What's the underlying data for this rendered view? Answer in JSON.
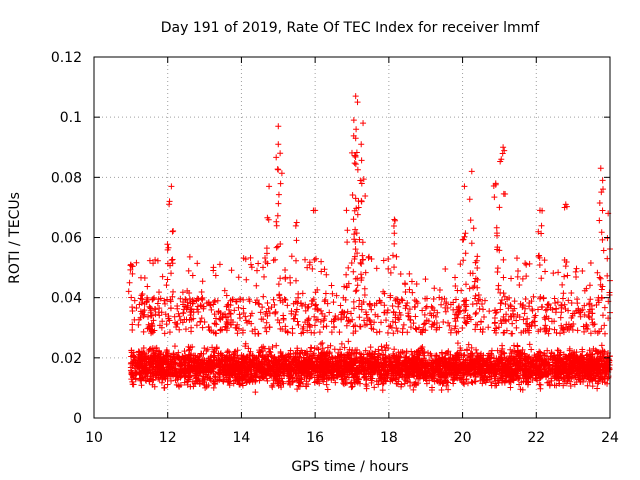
{
  "chart_data": {
    "type": "scatter",
    "marker": "plus",
    "color": "#ff0000",
    "title": "Day 191 of 2019, Rate Of TEC Index for receiver lmmf",
    "xlabel": "GPS time / hours",
    "ylabel": "ROTI / TECUs",
    "xlim": [
      10,
      24
    ],
    "ylim": [
      0,
      0.12
    ],
    "x_ticks": [
      10,
      12,
      14,
      16,
      18,
      20,
      22,
      24
    ],
    "x_tick_labels": [
      "10",
      "12",
      "14",
      "16",
      "18",
      "20",
      "22",
      "24"
    ],
    "y_ticks": [
      0,
      0.02,
      0.04,
      0.06,
      0.08,
      0.1,
      0.12
    ],
    "y_tick_labels": [
      "0",
      "0.02",
      "0.04",
      "0.06",
      "0.08",
      "0.1",
      "0.12"
    ],
    "grid": true,
    "series": [
      {
        "name": "ROTI",
        "x_range": [
          11.0,
          24.0
        ],
        "typical_band": [
          0.005,
          0.03
        ],
        "notable_points": [
          {
            "x": 11.0,
            "y": 0.051
          },
          {
            "x": 12.05,
            "y": 0.072
          },
          {
            "x": 12.1,
            "y": 0.077
          },
          {
            "x": 14.75,
            "y": 0.077
          },
          {
            "x": 15.0,
            "y": 0.097
          },
          {
            "x": 15.0,
            "y": 0.091
          },
          {
            "x": 15.05,
            "y": 0.088
          },
          {
            "x": 15.5,
            "y": 0.065
          },
          {
            "x": 16.0,
            "y": 0.069
          },
          {
            "x": 17.1,
            "y": 0.107
          },
          {
            "x": 17.15,
            "y": 0.105
          },
          {
            "x": 17.05,
            "y": 0.099
          },
          {
            "x": 17.3,
            "y": 0.098
          },
          {
            "x": 17.25,
            "y": 0.091
          },
          {
            "x": 17.1,
            "y": 0.093
          },
          {
            "x": 16.85,
            "y": 0.069
          },
          {
            "x": 17.1,
            "y": 0.073
          },
          {
            "x": 18.15,
            "y": 0.066
          },
          {
            "x": 20.05,
            "y": 0.077
          },
          {
            "x": 20.25,
            "y": 0.082
          },
          {
            "x": 20.9,
            "y": 0.078
          },
          {
            "x": 21.1,
            "y": 0.09
          },
          {
            "x": 21.05,
            "y": 0.086
          },
          {
            "x": 21.0,
            "y": 0.07
          },
          {
            "x": 22.1,
            "y": 0.069
          },
          {
            "x": 22.8,
            "y": 0.071
          },
          {
            "x": 23.75,
            "y": 0.083
          },
          {
            "x": 23.8,
            "y": 0.079
          },
          {
            "x": 23.95,
            "y": 0.068
          }
        ]
      }
    ]
  }
}
